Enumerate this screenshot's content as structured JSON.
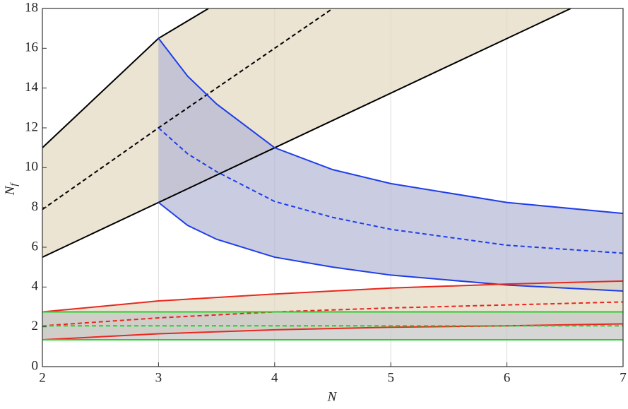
{
  "chart_data": {
    "type": "band",
    "xlabel": "N",
    "ylabel": "N",
    "ylabel_subscript": "f",
    "xlim": [
      2,
      7
    ],
    "ylim": [
      0,
      18
    ],
    "xticks": [
      2,
      3,
      4,
      5,
      6,
      7
    ],
    "yticks": [
      0,
      2,
      4,
      6,
      8,
      10,
      12,
      14,
      16,
      18
    ],
    "xgrid": true,
    "bands": [
      {
        "color": "#000000",
        "fill": "#e2d9bf",
        "upper": {
          "x": [
            2,
            3,
            3.43
          ],
          "y": [
            11,
            16.5,
            18
          ]
        },
        "center": {
          "x": [
            2,
            3,
            4.5
          ],
          "y": [
            7.9,
            12,
            18
          ]
        },
        "lower": {
          "x": [
            2,
            3,
            4,
            6.55
          ],
          "y": [
            5.5,
            8.25,
            11,
            18
          ]
        }
      },
      {
        "color": "#1f3de8",
        "fill": "#b4b6d6",
        "upper": {
          "x": [
            3,
            3.25,
            3.5,
            4,
            4.5,
            5,
            6,
            7
          ],
          "y": [
            16.5,
            14.6,
            13.2,
            11,
            9.9,
            9.2,
            8.25,
            7.7
          ]
        },
        "center": {
          "x": [
            3,
            3.25,
            3.5,
            4,
            4.5,
            5,
            6,
            7
          ],
          "y": [
            12,
            10.7,
            9.8,
            8.3,
            7.5,
            6.9,
            6.1,
            5.7
          ]
        },
        "lower": {
          "x": [
            3,
            3.25,
            3.5,
            4,
            4.5,
            5,
            6,
            7
          ],
          "y": [
            8.25,
            7.1,
            6.4,
            5.5,
            5,
            4.6,
            4.1,
            3.8
          ]
        }
      },
      {
        "color": "#e8281e",
        "fill": "#e2d9bf",
        "upper": {
          "x": [
            2,
            3,
            4,
            5,
            6,
            7
          ],
          "y": [
            2.75,
            3.3,
            3.65,
            3.95,
            4.15,
            4.3
          ]
        },
        "center": {
          "x": [
            2,
            3,
            4,
            5,
            6,
            7
          ],
          "y": [
            2.05,
            2.45,
            2.75,
            2.95,
            3.1,
            3.25
          ]
        },
        "lower": {
          "x": [
            2,
            3,
            4,
            5,
            6,
            7
          ],
          "y": [
            1.35,
            1.65,
            1.85,
            1.98,
            2.05,
            2.15
          ]
        }
      },
      {
        "color": "#22d322",
        "fill": "#c4c4c4",
        "upper": {
          "x": [
            2,
            7
          ],
          "y": [
            2.75,
            2.75
          ]
        },
        "center": {
          "x": [
            2,
            7
          ],
          "y": [
            2.05,
            2.05
          ]
        },
        "lower": {
          "x": [
            2,
            7
          ],
          "y": [
            1.35,
            1.35
          ]
        }
      }
    ]
  }
}
